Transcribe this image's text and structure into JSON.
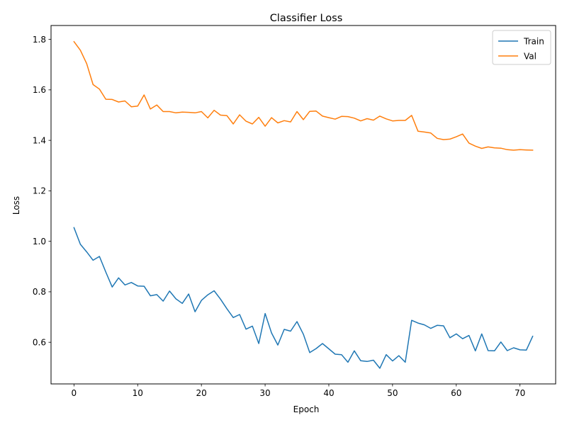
{
  "chart_data": {
    "type": "line",
    "title": "Classifier Loss",
    "xlabel": "Epoch",
    "ylabel": "Loss",
    "xlim": [
      -3.6,
      75.6
    ],
    "ylim": [
      0.435,
      1.855
    ],
    "xticks": [
      0,
      10,
      20,
      30,
      40,
      50,
      60,
      70
    ],
    "yticks": [
      0.6,
      0.8,
      1.0,
      1.2,
      1.4,
      1.6,
      1.8
    ],
    "ytick_labels": [
      "0.6",
      "0.8",
      "1.0",
      "1.2",
      "1.4",
      "1.6",
      "1.8"
    ],
    "grid": false,
    "legend_position": "top-right",
    "x": [
      0,
      1,
      2,
      3,
      4,
      5,
      6,
      7,
      8,
      9,
      10,
      11,
      12,
      13,
      14,
      15,
      16,
      17,
      18,
      19,
      20,
      21,
      22,
      23,
      24,
      25,
      26,
      27,
      28,
      29,
      30,
      31,
      32,
      33,
      34,
      35,
      36,
      37,
      38,
      39,
      40,
      41,
      42,
      43,
      44,
      45,
      46,
      47,
      48,
      49,
      50,
      51,
      52,
      53,
      54,
      55,
      56,
      57,
      58,
      59,
      60,
      61,
      62,
      63,
      64,
      65,
      66,
      67,
      68,
      69,
      70,
      71,
      72
    ],
    "series": [
      {
        "name": "Train",
        "color": "#1f77b4",
        "values": [
          1.054,
          0.988,
          0.958,
          0.925,
          0.94,
          0.878,
          0.819,
          0.855,
          0.827,
          0.837,
          0.823,
          0.822,
          0.784,
          0.789,
          0.763,
          0.803,
          0.772,
          0.754,
          0.791,
          0.721,
          0.766,
          0.788,
          0.804,
          0.771,
          0.733,
          0.698,
          0.71,
          0.652,
          0.664,
          0.595,
          0.714,
          0.637,
          0.589,
          0.651,
          0.644,
          0.682,
          0.632,
          0.559,
          0.575,
          0.595,
          0.574,
          0.553,
          0.551,
          0.521,
          0.566,
          0.527,
          0.524,
          0.529,
          0.497,
          0.551,
          0.526,
          0.547,
          0.521,
          0.687,
          0.676,
          0.669,
          0.655,
          0.667,
          0.665,
          0.618,
          0.633,
          0.614,
          0.627,
          0.566,
          0.633,
          0.567,
          0.566,
          0.601,
          0.567,
          0.578,
          0.57,
          0.569,
          0.624
        ]
      },
      {
        "name": "Val",
        "color": "#ff7f0e",
        "values": [
          1.791,
          1.757,
          1.704,
          1.621,
          1.603,
          1.563,
          1.562,
          1.552,
          1.556,
          1.533,
          1.536,
          1.58,
          1.524,
          1.54,
          1.514,
          1.514,
          1.509,
          1.512,
          1.511,
          1.509,
          1.514,
          1.489,
          1.519,
          1.5,
          1.498,
          1.465,
          1.501,
          1.476,
          1.465,
          1.491,
          1.456,
          1.49,
          1.469,
          1.478,
          1.473,
          1.514,
          1.482,
          1.515,
          1.516,
          1.496,
          1.49,
          1.484,
          1.495,
          1.494,
          1.488,
          1.477,
          1.486,
          1.48,
          1.496,
          1.485,
          1.477,
          1.479,
          1.479,
          1.499,
          1.436,
          1.433,
          1.429,
          1.408,
          1.403,
          1.405,
          1.414,
          1.425,
          1.389,
          1.377,
          1.368,
          1.374,
          1.37,
          1.369,
          1.363,
          1.361,
          1.363,
          1.362,
          1.361
        ]
      }
    ]
  }
}
